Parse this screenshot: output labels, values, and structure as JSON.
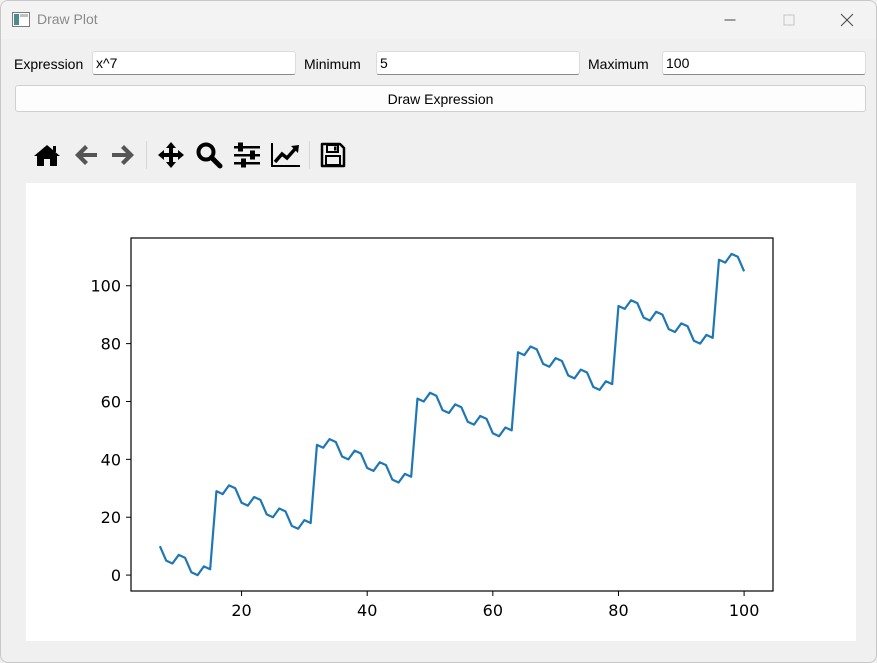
{
  "window": {
    "title": "Draw Plot"
  },
  "controls": {
    "expression_label": "Expression",
    "expression_value": "x^7",
    "minimum_label": "Minimum",
    "minimum_value": "5",
    "maximum_label": "Maximum",
    "maximum_value": "100",
    "draw_button_label": "Draw Expression"
  },
  "toolbar": {
    "icons": [
      "home-icon",
      "back-arrow-icon",
      "forward-arrow-icon",
      "pan-icon",
      "zoom-icon",
      "configure-subplots-icon",
      "edit-axis-icon",
      "save-icon"
    ]
  },
  "colors": {
    "line": "#1f77b4"
  },
  "chart_data": {
    "type": "line",
    "title": "",
    "xlabel": "",
    "ylabel": "",
    "xlim": [
      2.4,
      104.6
    ],
    "ylim": [
      -5.5,
      116.5
    ],
    "xticks": [
      20,
      40,
      60,
      80,
      100
    ],
    "yticks": [
      0,
      20,
      40,
      60,
      80,
      100
    ],
    "grid": false,
    "legend": "none",
    "series": [
      {
        "x": [
          7,
          8,
          9,
          10,
          11,
          12,
          13,
          14,
          15,
          16,
          17,
          18,
          19,
          20,
          21,
          22,
          23,
          24,
          25,
          26,
          27,
          28,
          29,
          30,
          31,
          32,
          33,
          34,
          35,
          36,
          37,
          38,
          39,
          40,
          41,
          42,
          43,
          44,
          45,
          46,
          47,
          48,
          49,
          50,
          51,
          52,
          53,
          54,
          55,
          56,
          57,
          58,
          59,
          60,
          61,
          62,
          63,
          64,
          65,
          66,
          67,
          68,
          69,
          70,
          71,
          72,
          73,
          74,
          75,
          76,
          77,
          78,
          79,
          80,
          81,
          82,
          83,
          84,
          85,
          86,
          87,
          88,
          89,
          90,
          91,
          92,
          93,
          94,
          95,
          96,
          97,
          98,
          99,
          100
        ],
        "values": [
          10,
          5,
          4,
          7,
          6,
          1,
          0,
          3,
          2,
          29,
          28,
          31,
          30,
          25,
          24,
          27,
          26,
          21,
          20,
          23,
          22,
          17,
          16,
          19,
          18,
          45,
          44,
          47,
          46,
          41,
          40,
          43,
          42,
          37,
          36,
          39,
          38,
          33,
          32,
          35,
          34,
          61,
          60,
          63,
          62,
          57,
          56,
          59,
          58,
          53,
          52,
          55,
          54,
          49,
          48,
          51,
          50,
          77,
          76,
          79,
          78,
          73,
          72,
          75,
          74,
          69,
          68,
          71,
          70,
          65,
          64,
          67,
          66,
          93,
          92,
          95,
          94,
          89,
          88,
          91,
          90,
          85,
          84,
          87,
          86,
          81,
          80,
          83,
          82,
          109,
          108,
          111,
          110,
          105
        ]
      }
    ]
  }
}
